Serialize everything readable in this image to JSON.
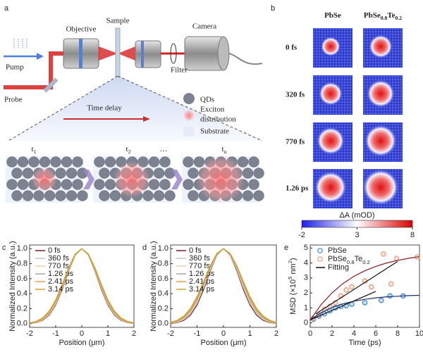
{
  "panel_labels": [
    "a",
    "b",
    "c",
    "d",
    "e"
  ],
  "diagram": {
    "optics": [
      "Objective",
      "Sample",
      "Camera",
      "Pump",
      "Probe",
      "Filter"
    ],
    "legend": [
      [
        "QDs"
      ],
      [
        "Exciton",
        "distribution"
      ],
      [
        "Substrate"
      ]
    ],
    "time_delay": "Time delay",
    "steps": [
      [
        {
          "t": "t"
        },
        {
          "t": "1",
          "pos": "sub"
        }
      ],
      [
        {
          "t": "t"
        },
        {
          "t": "2",
          "pos": "sub"
        }
      ],
      [
        {
          "t": "…"
        }
      ],
      [
        {
          "t": "t"
        },
        {
          "t": "n",
          "pos": "sub"
        }
      ]
    ]
  },
  "maps": {
    "columns": [
      [
        {
          "t": "PbSe"
        }
      ],
      [
        {
          "t": "PbSe"
        },
        {
          "t": "0.8",
          "pos": "sub"
        },
        {
          "t": "Te"
        },
        {
          "t": "0.2",
          "pos": "sub"
        }
      ]
    ],
    "rows": [
      "0 fs",
      "320 fs",
      "770 fs",
      "1.26 ps"
    ],
    "colorbar": {
      "label": "ΔA (mOD)",
      "lim": [
        -2,
        8
      ],
      "ticks": [
        -2,
        3,
        8
      ],
      "colors": [
        "#1e1ee6",
        "#ffffff",
        "#d80000"
      ]
    }
  },
  "chart_data": [
    {
      "type": "line",
      "xlabel": "Position (μm)",
      "ylabel": "Normalized Intensity (a.u.)",
      "legend": "upper left",
      "x": [
        -2,
        -1.75,
        -1.5,
        -1.25,
        -1,
        -0.75,
        -0.5,
        -0.25,
        0,
        0.25,
        0.5,
        0.75,
        1,
        1.25,
        1.5,
        1.75,
        2
      ],
      "xlim": [
        -2,
        2
      ],
      "xticks": [
        -2,
        -1,
        0,
        1,
        2
      ],
      "ylim": [
        -0.05,
        1.05
      ],
      "yticks": [
        {
          "value": 0,
          "label": "0.0"
        },
        0.2,
        0.4,
        0.6,
        0.8,
        {
          "value": 1,
          "label": "1.0"
        }
      ],
      "series": [
        {
          "name": "0 fs",
          "color": "#7b1c1c",
          "values": [
            0.004,
            0.014,
            0.044,
            0.114,
            0.249,
            0.458,
            0.707,
            0.917,
            1,
            0.917,
            0.707,
            0.458,
            0.249,
            0.114,
            0.044,
            0.014,
            0.004
          ]
        },
        {
          "name": "360 fs",
          "color": "#c4c4c4",
          "values": [
            0.005,
            0.016,
            0.049,
            0.122,
            0.261,
            0.47,
            0.715,
            0.919,
            1,
            0.919,
            0.715,
            0.47,
            0.261,
            0.122,
            0.049,
            0.016,
            0.005
          ]
        },
        {
          "name": "770 fs",
          "color": "#e8cfa8",
          "values": [
            0.006,
            0.019,
            0.054,
            0.131,
            0.272,
            0.481,
            0.722,
            0.922,
            1,
            0.922,
            0.722,
            0.481,
            0.272,
            0.131,
            0.054,
            0.019,
            0.006
          ]
        },
        {
          "name": "1.26 ps",
          "color": "#a6a6a6",
          "values": [
            0.006,
            0.021,
            0.059,
            0.14,
            0.284,
            0.492,
            0.73,
            0.924,
            1,
            0.924,
            0.73,
            0.492,
            0.284,
            0.14,
            0.059,
            0.021,
            0.006
          ]
        },
        {
          "name": "2.41 ps",
          "color": "#e8a040",
          "values": [
            0.008,
            0.024,
            0.064,
            0.149,
            0.295,
            0.503,
            0.737,
            0.927,
            1,
            0.927,
            0.737,
            0.503,
            0.295,
            0.149,
            0.064,
            0.024,
            0.008
          ]
        },
        {
          "name": "3.14 ps",
          "color": "#c8a428",
          "values": [
            0.01,
            0.03,
            0.076,
            0.166,
            0.317,
            0.524,
            0.751,
            0.931,
            1,
            0.931,
            0.751,
            0.524,
            0.317,
            0.166,
            0.076,
            0.03,
            0.01
          ]
        }
      ]
    },
    {
      "type": "line",
      "xlabel": "Position (μm)",
      "ylabel": "Normalized Intensity (a.u.)",
      "legend": "upper left",
      "x": [
        -2,
        -1.75,
        -1.5,
        -1.25,
        -1,
        -0.75,
        -0.5,
        -0.25,
        0,
        0.25,
        0.5,
        0.75,
        1,
        1.25,
        1.5,
        1.75,
        2
      ],
      "xlim": [
        -2,
        2
      ],
      "xticks": [
        -2,
        -1,
        0,
        1,
        2
      ],
      "ylim": [
        -0.05,
        1.05
      ],
      "yticks": [
        {
          "value": 0,
          "label": "0.0"
        },
        0.2,
        0.4,
        0.6,
        0.8,
        {
          "value": 1,
          "label": "1.0"
        }
      ],
      "series": [
        {
          "name": "0 fs",
          "color": "#7b1c1c",
          "values": [
            0.004,
            0.014,
            0.044,
            0.114,
            0.249,
            0.458,
            0.707,
            0.917,
            1,
            0.917,
            0.707,
            0.458,
            0.249,
            0.114,
            0.044,
            0.014,
            0.004
          ]
        },
        {
          "name": "360 fs",
          "color": "#c4c4c4",
          "values": [
            0.006,
            0.019,
            0.054,
            0.131,
            0.272,
            0.481,
            0.722,
            0.922,
            1,
            0.922,
            0.722,
            0.481,
            0.272,
            0.131,
            0.054,
            0.019,
            0.006
          ]
        },
        {
          "name": "770 fs",
          "color": "#e8cfa8",
          "values": [
            0.008,
            0.024,
            0.064,
            0.149,
            0.295,
            0.503,
            0.737,
            0.927,
            1,
            0.927,
            0.737,
            0.503,
            0.295,
            0.149,
            0.064,
            0.024,
            0.008
          ]
        },
        {
          "name": "1.26 ps",
          "color": "#a6a6a6",
          "values": [
            0.01,
            0.03,
            0.076,
            0.166,
            0.317,
            0.524,
            0.751,
            0.931,
            1,
            0.931,
            0.751,
            0.524,
            0.317,
            0.166,
            0.076,
            0.03,
            0.01
          ]
        },
        {
          "name": "2.41 ps",
          "color": "#e8a040",
          "values": [
            0.013,
            0.036,
            0.088,
            0.185,
            0.339,
            0.544,
            0.763,
            0.935,
            1,
            0.935,
            0.763,
            0.544,
            0.339,
            0.185,
            0.088,
            0.036,
            0.013
          ]
        },
        {
          "name": "3.14 ps",
          "color": "#c8a428",
          "values": [
            0.017,
            0.044,
            0.101,
            0.203,
            0.361,
            0.563,
            0.775,
            0.938,
            1,
            0.938,
            0.775,
            0.563,
            0.361,
            0.203,
            0.101,
            0.044,
            0.017
          ]
        }
      ]
    },
    {
      "type": "scatter",
      "xlabel": "Time (ps)",
      "ylabel": [
        {
          "t": "MSD (×10"
        },
        {
          "t": "5",
          "pos": "super"
        },
        {
          "t": " nm"
        },
        {
          "t": "2",
          "pos": "super"
        },
        {
          "t": ")"
        }
      ],
      "legend": "upper left",
      "xlim": [
        0,
        10
      ],
      "xticks": [
        0,
        2,
        4,
        6,
        8,
        10
      ],
      "ylim": [
        -0.3,
        5.2
      ],
      "yticks": [
        0,
        1,
        2,
        3,
        4,
        5
      ],
      "series": [
        {
          "name": [
            {
              "t": "PbSe"
            }
          ],
          "color": "#3a86c8",
          "marker": "circle",
          "x": [
            0.3,
            0.8,
            1.3,
            1.8,
            2.3,
            2.8,
            3.3,
            3.8,
            5.0,
            6.5,
            7.3,
            8.5
          ],
          "values": [
            0.25,
            0.45,
            0.6,
            0.8,
            1.0,
            1.1,
            1.15,
            1.25,
            1.35,
            1.5,
            1.8,
            1.8
          ]
        },
        {
          "name": [
            {
              "t": "PbSe"
            },
            {
              "t": "0.8",
              "pos": "sub"
            },
            {
              "t": "Te"
            },
            {
              "t": "0.2",
              "pos": "sub"
            }
          ],
          "color": "#e89a7a",
          "marker": "circle",
          "x": [
            0.3,
            0.8,
            1.3,
            1.8,
            2.3,
            2.8,
            3.3,
            3.8,
            5.0,
            5.6,
            6.7,
            7.4,
            7.9,
            9.8
          ],
          "values": [
            0.3,
            0.55,
            0.9,
            1.1,
            1.35,
            1.8,
            2.2,
            2.4,
            2.8,
            2.4,
            4.6,
            2.6,
            4.3,
            4.4
          ]
        },
        {
          "name": [
            {
              "t": "Fitting"
            }
          ],
          "color": "#111111",
          "marker": "line",
          "lines": [
            {
              "color": "#1f2f6e",
              "x": [
                0,
                1,
                2,
                3,
                4,
                5,
                6,
                7,
                8,
                9,
                10
              ],
              "values": [
                0.2,
                0.68,
                1.03,
                1.27,
                1.45,
                1.57,
                1.67,
                1.74,
                1.78,
                1.82,
                1.84
              ]
            },
            {
              "color": "#8b1a1a",
              "x": [
                0,
                1,
                2,
                3,
                4,
                5,
                6,
                7,
                8,
                9,
                10
              ],
              "values": [
                0.2,
                1.22,
                2.01,
                2.63,
                3.11,
                3.48,
                3.77,
                4.0,
                4.17,
                4.31,
                4.42
              ]
            },
            {
              "color": "#111111",
              "x": [
                0,
                6
              ],
              "values": [
                0.2,
                2.1
              ]
            },
            {
              "color": "#111111",
              "x": [
                0.5,
                8
              ],
              "values": [
                0.6,
                4.1
              ]
            }
          ]
        }
      ]
    }
  ]
}
